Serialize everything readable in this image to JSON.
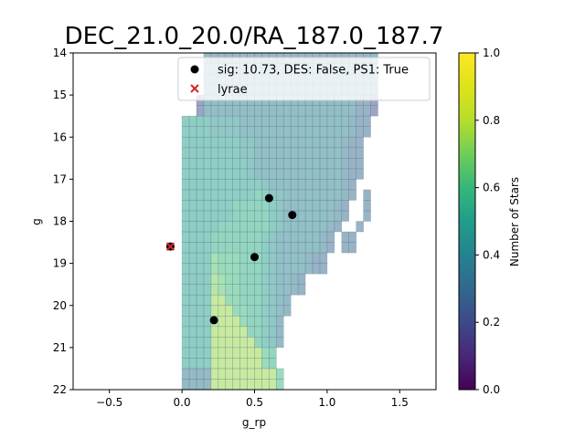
{
  "chart_data": {
    "type": "heatmap",
    "title": "DEC_21.0_20.0/RA_187.0_187.7",
    "xlabel": "g_rp",
    "ylabel": "g",
    "xlim": [
      -0.75,
      1.75
    ],
    "ylim": [
      22,
      14
    ],
    "y_inverted": true,
    "x_ticks": [
      "−0.5",
      "0.0",
      "0.5",
      "1.0",
      "1.5"
    ],
    "x_tick_values": [
      -0.5,
      0.0,
      0.5,
      1.0,
      1.5
    ],
    "y_ticks": [
      "14",
      "15",
      "16",
      "17",
      "18",
      "19",
      "20",
      "21",
      "22"
    ],
    "y_tick_values": [
      14,
      15,
      16,
      17,
      18,
      19,
      20,
      21,
      22
    ],
    "colorbar": {
      "label": "Number of Stars",
      "min": 0.0,
      "max": 1.0,
      "ticks": [
        "0.0",
        "0.2",
        "0.4",
        "0.6",
        "0.8",
        "1.0"
      ],
      "tick_values": [
        0.0,
        0.2,
        0.4,
        0.6,
        0.8,
        1.0
      ],
      "colormap": "viridis"
    },
    "heatmap": {
      "cell_width": 0.05,
      "cell_height": 0.25,
      "alpha": 0.5,
      "rows": [
        {
          "y0": 14.0,
          "x0": -0.05,
          "values": [
            null,
            null,
            null,
            null,
            0.35,
            0.35,
            0.35,
            0.35,
            0.35,
            0.35,
            0.35,
            0.35,
            0.35,
            0.35,
            0.35,
            0.35,
            0.35,
            0.35,
            0.35,
            0.35,
            0.35,
            0.35,
            0.35,
            0.35,
            0.35,
            0.35,
            0.35,
            0.35
          ]
        },
        {
          "y0": 14.25,
          "x0": -0.05,
          "values": [
            null,
            null,
            null,
            null,
            0.35,
            0.35,
            0.35,
            0.35,
            0.35,
            0.35,
            0.35,
            0.35,
            0.35,
            0.35,
            0.35,
            0.35,
            0.35,
            0.35,
            0.35,
            0.35,
            0.35,
            0.35,
            0.35,
            0.35,
            0.35,
            0.35,
            0.35,
            0.35
          ]
        },
        {
          "y0": 14.5,
          "x0": -0.05,
          "values": [
            null,
            null,
            null,
            null,
            0.35,
            0.35,
            0.35,
            0.35,
            0.35,
            0.35,
            0.35,
            0.35,
            0.35,
            0.35,
            0.35,
            0.35,
            0.35,
            0.35,
            0.35,
            0.35,
            0.35,
            0.35,
            0.35,
            0.35,
            0.35,
            0.35,
            0.35,
            0.35
          ]
        },
        {
          "y0": 14.75,
          "x0": -0.05,
          "values": [
            null,
            null,
            null,
            null,
            0.35,
            0.35,
            0.35,
            0.35,
            0.35,
            0.35,
            0.35,
            0.35,
            0.35,
            0.35,
            0.35,
            0.35,
            0.35,
            0.35,
            0.35,
            0.35,
            0.35,
            0.35,
            0.35,
            0.35,
            0.35,
            0.35,
            0.35,
            0.35
          ]
        },
        {
          "y0": 15.0,
          "x0": -0.05,
          "values": [
            null,
            null,
            null,
            0.2,
            0.38,
            0.38,
            0.38,
            0.38,
            0.38,
            0.38,
            0.38,
            0.38,
            0.38,
            0.38,
            0.38,
            0.38,
            0.38,
            0.38,
            0.38,
            0.38,
            0.38,
            0.38,
            0.38,
            0.38,
            0.38,
            0.3,
            0.3,
            0.2
          ]
        },
        {
          "y0": 15.25,
          "x0": -0.05,
          "values": [
            null,
            null,
            null,
            0.2,
            0.38,
            0.38,
            0.38,
            0.38,
            0.38,
            0.38,
            0.38,
            0.38,
            0.38,
            0.38,
            0.38,
            0.38,
            0.38,
            0.38,
            0.38,
            0.38,
            0.38,
            0.38,
            0.38,
            0.38,
            0.38,
            0.3,
            0.3,
            0.2
          ]
        },
        {
          "y0": 15.5,
          "x0": -0.05,
          "values": [
            null,
            0.5,
            0.5,
            0.5,
            0.5,
            0.45,
            0.45,
            0.45,
            0.45,
            0.4,
            0.4,
            0.4,
            0.4,
            0.4,
            0.4,
            0.4,
            0.4,
            0.4,
            0.4,
            0.4,
            0.4,
            0.4,
            0.4,
            0.4,
            0.35,
            0.3,
            0.3
          ]
        },
        {
          "y0": 15.75,
          "x0": -0.05,
          "values": [
            null,
            0.5,
            0.5,
            0.5,
            0.5,
            0.45,
            0.45,
            0.45,
            0.45,
            0.4,
            0.4,
            0.4,
            0.4,
            0.4,
            0.4,
            0.4,
            0.4,
            0.4,
            0.4,
            0.4,
            0.4,
            0.4,
            0.4,
            0.4,
            0.35,
            0.3,
            0.3
          ]
        },
        {
          "y0": 16.0,
          "x0": -0.05,
          "values": [
            null,
            0.5,
            0.5,
            0.5,
            0.5,
            0.5,
            0.5,
            0.5,
            0.5,
            0.45,
            0.45,
            0.4,
            0.4,
            0.4,
            0.4,
            0.4,
            0.4,
            0.4,
            0.4,
            0.4,
            0.4,
            0.4,
            0.4,
            0.35,
            0.3,
            0.3
          ]
        },
        {
          "y0": 16.25,
          "x0": -0.05,
          "values": [
            null,
            0.5,
            0.5,
            0.5,
            0.5,
            0.5,
            0.5,
            0.5,
            0.5,
            0.45,
            0.45,
            0.4,
            0.4,
            0.4,
            0.4,
            0.4,
            0.4,
            0.4,
            0.4,
            0.4,
            0.4,
            0.4,
            0.4,
            0.35,
            0.3,
            0.3
          ]
        },
        {
          "y0": 16.5,
          "x0": -0.05,
          "values": [
            null,
            0.5,
            0.5,
            0.5,
            0.5,
            0.5,
            0.5,
            0.5,
            0.5,
            0.5,
            0.45,
            0.4,
            0.4,
            0.4,
            0.4,
            0.4,
            0.4,
            0.4,
            0.4,
            0.4,
            0.4,
            0.4,
            0.4,
            0.35,
            0.3,
            0.3
          ]
        },
        {
          "y0": 16.75,
          "x0": -0.05,
          "values": [
            null,
            0.5,
            0.5,
            0.5,
            0.5,
            0.5,
            0.5,
            0.5,
            0.5,
            0.5,
            0.45,
            0.4,
            0.4,
            0.4,
            0.4,
            0.4,
            0.4,
            0.4,
            0.4,
            0.4,
            0.4,
            0.4,
            0.4,
            0.35,
            0.3,
            0.3
          ]
        },
        {
          "y0": 17.0,
          "x0": -0.05,
          "values": [
            null,
            0.5,
            0.5,
            0.5,
            0.5,
            0.5,
            0.5,
            0.5,
            0.5,
            0.5,
            0.5,
            0.5,
            0.45,
            0.4,
            0.4,
            0.4,
            0.4,
            0.4,
            0.4,
            0.4,
            0.4,
            0.4,
            0.4,
            0.35,
            0.3
          ]
        },
        {
          "y0": 17.25,
          "x0": -0.05,
          "values": [
            null,
            0.5,
            0.5,
            0.5,
            0.5,
            0.5,
            0.5,
            0.5,
            0.5,
            0.5,
            0.5,
            0.55,
            0.5,
            0.45,
            0.45,
            0.4,
            0.4,
            0.4,
            0.4,
            0.4,
            0.4,
            0.4,
            0.4,
            0.35,
            0.3,
            null,
            0.3
          ]
        },
        {
          "y0": 17.5,
          "x0": -0.05,
          "values": [
            null,
            0.5,
            0.5,
            0.5,
            0.5,
            0.5,
            0.5,
            0.5,
            0.55,
            0.55,
            0.55,
            0.55,
            0.55,
            0.5,
            0.45,
            0.4,
            0.4,
            0.4,
            0.4,
            0.4,
            0.4,
            0.4,
            0.35,
            0.3,
            null,
            null,
            0.3
          ]
        },
        {
          "y0": 17.75,
          "x0": -0.05,
          "values": [
            null,
            0.5,
            0.5,
            0.5,
            0.5,
            0.5,
            0.5,
            0.5,
            0.55,
            0.55,
            0.55,
            0.55,
            0.55,
            0.5,
            0.45,
            0.4,
            0.4,
            0.4,
            0.4,
            0.4,
            0.4,
            0.4,
            0.35,
            0.3,
            null,
            null,
            0.3
          ]
        },
        {
          "y0": 18.0,
          "x0": -0.05,
          "values": [
            null,
            0.5,
            0.5,
            0.5,
            0.5,
            0.5,
            0.55,
            0.55,
            0.55,
            0.55,
            0.55,
            0.55,
            0.55,
            0.5,
            0.45,
            0.4,
            0.4,
            0.4,
            0.4,
            0.4,
            0.4,
            0.35,
            0.3,
            null,
            null,
            0.3
          ]
        },
        {
          "y0": 18.25,
          "x0": -0.05,
          "values": [
            null,
            0.5,
            0.5,
            0.5,
            0.5,
            0.55,
            0.55,
            0.55,
            0.55,
            0.55,
            0.55,
            0.55,
            0.5,
            0.45,
            0.4,
            0.4,
            0.4,
            0.4,
            0.4,
            0.4,
            0.35,
            0.3,
            null,
            0.3,
            0.3
          ]
        },
        {
          "y0": 18.5,
          "x0": -0.05,
          "values": [
            null,
            0.5,
            0.5,
            0.5,
            0.5,
            0.55,
            0.55,
            0.55,
            0.55,
            0.55,
            0.55,
            0.55,
            0.5,
            0.45,
            0.4,
            0.4,
            0.4,
            0.4,
            0.4,
            0.4,
            0.35,
            0.3,
            null,
            0.3,
            0.3
          ]
        },
        {
          "y0": 18.75,
          "x0": -0.05,
          "values": [
            null,
            0.5,
            0.5,
            0.5,
            0.5,
            0.65,
            0.6,
            0.6,
            0.6,
            0.55,
            0.55,
            0.55,
            0.5,
            0.45,
            0.4,
            0.4,
            0.4,
            0.4,
            0.35,
            0.3,
            0.3
          ]
        },
        {
          "y0": 19.0,
          "x0": -0.05,
          "values": [
            null,
            0.5,
            0.5,
            0.5,
            0.5,
            0.65,
            0.6,
            0.6,
            0.6,
            0.55,
            0.55,
            0.55,
            0.5,
            0.45,
            0.4,
            0.4,
            0.4,
            0.4,
            0.35,
            0.3,
            0.3
          ]
        },
        {
          "y0": 19.25,
          "x0": -0.05,
          "values": [
            null,
            0.5,
            0.5,
            0.5,
            0.5,
            0.7,
            0.65,
            0.6,
            0.6,
            0.55,
            0.55,
            0.55,
            0.5,
            0.45,
            0.4,
            0.4,
            0.35,
            0.3
          ]
        },
        {
          "y0": 19.5,
          "x0": -0.05,
          "values": [
            null,
            0.5,
            0.5,
            0.5,
            0.5,
            0.7,
            0.65,
            0.6,
            0.6,
            0.55,
            0.55,
            0.55,
            0.5,
            0.45,
            0.4,
            0.4,
            0.35,
            0.3
          ]
        },
        {
          "y0": 19.75,
          "x0": -0.05,
          "values": [
            null,
            0.5,
            0.5,
            0.5,
            0.5,
            0.75,
            0.75,
            0.6,
            0.6,
            0.55,
            0.55,
            0.55,
            0.5,
            0.45,
            0.4,
            0.35
          ]
        },
        {
          "y0": 20.0,
          "x0": -0.05,
          "values": [
            null,
            0.5,
            0.5,
            0.5,
            0.5,
            0.75,
            0.75,
            0.75,
            0.6,
            0.6,
            0.55,
            0.55,
            0.5,
            0.45,
            0.4,
            0.35
          ]
        },
        {
          "y0": 20.25,
          "x0": -0.05,
          "values": [
            null,
            0.5,
            0.5,
            0.5,
            0.5,
            0.75,
            0.75,
            0.75,
            0.75,
            0.6,
            0.55,
            0.55,
            0.5,
            0.45,
            0.35
          ]
        },
        {
          "y0": 20.5,
          "x0": -0.05,
          "values": [
            null,
            0.5,
            0.5,
            0.5,
            0.5,
            0.75,
            0.75,
            0.75,
            0.75,
            0.75,
            0.55,
            0.55,
            0.5,
            0.45,
            0.35
          ]
        },
        {
          "y0": 20.75,
          "x0": -0.05,
          "values": [
            null,
            0.5,
            0.5,
            0.5,
            0.5,
            0.75,
            0.75,
            0.75,
            0.75,
            0.75,
            0.75,
            0.55,
            0.5,
            0.45,
            0.35
          ]
        },
        {
          "y0": 21.0,
          "x0": -0.05,
          "values": [
            null,
            0.5,
            0.5,
            0.5,
            0.5,
            0.75,
            0.75,
            0.75,
            0.75,
            0.75,
            0.75,
            0.75,
            0.6,
            0.55
          ]
        },
        {
          "y0": 21.25,
          "x0": -0.05,
          "values": [
            null,
            0.5,
            0.5,
            0.5,
            0.5,
            0.75,
            0.75,
            0.75,
            0.75,
            0.75,
            0.75,
            0.75,
            0.6,
            0.55
          ]
        },
        {
          "y0": 21.5,
          "x0": -0.05,
          "values": [
            null,
            0.35,
            0.35,
            0.35,
            0.35,
            0.75,
            0.75,
            0.75,
            0.75,
            0.75,
            0.75,
            0.75,
            0.75,
            0.75,
            0.6
          ]
        },
        {
          "y0": 21.75,
          "x0": -0.05,
          "values": [
            null,
            0.35,
            0.35,
            0.35,
            0.35,
            0.75,
            0.75,
            0.75,
            0.75,
            0.75,
            0.75,
            0.75,
            0.75,
            0.75,
            0.6
          ]
        }
      ]
    },
    "series": [
      {
        "name": "sig: 10.73, DES: False, PS1: True",
        "marker": "circle",
        "color": "#000000",
        "points": [
          [
            0.6,
            17.45
          ],
          [
            0.76,
            17.85
          ],
          [
            0.5,
            18.85
          ],
          [
            0.22,
            20.35
          ],
          [
            -0.08,
            18.6
          ]
        ]
      },
      {
        "name": "lyrae",
        "marker": "x",
        "color": "#d62728",
        "points": [
          [
            -0.08,
            18.6
          ]
        ]
      }
    ]
  }
}
